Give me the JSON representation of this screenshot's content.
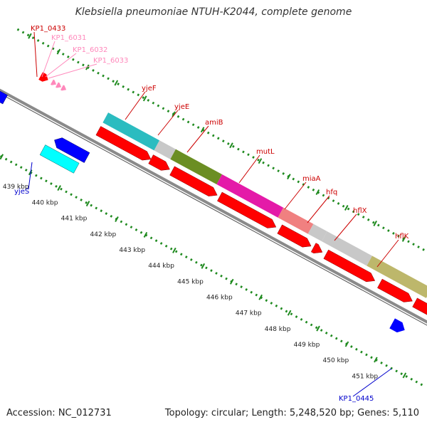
{
  "title": "Klebsiella pneumoniae NTUH-K2044, complete genome",
  "footer": {
    "accession": "Accession: NC_012731",
    "summary": "Topology: circular; Length: 5,248,520 bp; Genes: 5,110"
  },
  "colors": {
    "backbone": "#8a8a8a",
    "tick_major": "#1f8a1f",
    "tick_minor": "#1f8a1f",
    "cds": "#ff0000",
    "feature_plus": "#0000ff",
    "feature_minus": "#00ffff",
    "label_default": "#cc0000",
    "label_pink": "#ff88bb",
    "label_blue": "#0000cc"
  },
  "scale_labels": [
    "439 kbp",
    "440 kbp",
    "441 kbp",
    "442 kbp",
    "443 kbp",
    "444 kbp",
    "445 kbp",
    "446 kbp",
    "447 kbp",
    "448 kbp",
    "449 kbp",
    "450 kbp",
    "451 kbp"
  ],
  "gene_labels": [
    {
      "text": "KP1_0433",
      "color": "#cc0000"
    },
    {
      "text": "KP1_6031",
      "color": "#ff88bb"
    },
    {
      "text": "KP1_6032",
      "color": "#ff88bb"
    },
    {
      "text": "KP1_6033",
      "color": "#ff88bb"
    },
    {
      "text": "yjeF",
      "color": "#cc0000"
    },
    {
      "text": "yjeE",
      "color": "#cc0000"
    },
    {
      "text": "amiB",
      "color": "#cc0000"
    },
    {
      "text": "mutL",
      "color": "#cc0000"
    },
    {
      "text": "miaA",
      "color": "#cc0000"
    },
    {
      "text": "hfq",
      "color": "#cc0000"
    },
    {
      "text": "hflX",
      "color": "#cc0000"
    },
    {
      "text": "hflK",
      "color": "#cc0000"
    },
    {
      "text": "yjeS",
      "color": "#0000cc"
    },
    {
      "text": "KP1_0445",
      "color": "#0000cc"
    }
  ],
  "cog_blocks": [
    {
      "name": "yjeF",
      "color": "#2bbcc0"
    },
    {
      "name": "yjeE",
      "color": "#c8c8c8"
    },
    {
      "name": "amiB",
      "color": "#6b8e23"
    },
    {
      "name": "mutL",
      "color": "#e41aa8"
    },
    {
      "name": "miaA",
      "color": "#f08080"
    },
    {
      "name": "hfq",
      "color": "#c8c8c8"
    },
    {
      "name": "hflX",
      "color": "#c8c8c8"
    },
    {
      "name": "hflK",
      "color": "#bdb76b"
    }
  ]
}
